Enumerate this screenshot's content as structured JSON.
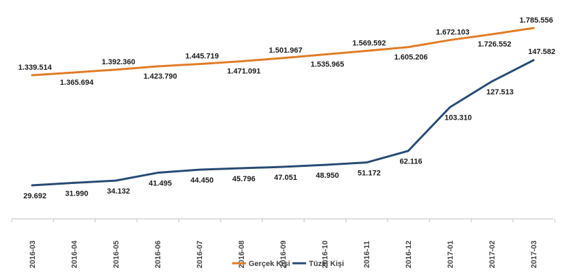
{
  "chart_data": {
    "type": "line",
    "categories": [
      "2016-03",
      "2016-04",
      "2016-05",
      "2016-06",
      "2016-07",
      "2016-08",
      "2016-09",
      "2016-10",
      "2016-11",
      "2016-12",
      "2017-01",
      "2017-02",
      "2017-03"
    ],
    "series": [
      {
        "name": "Gerçek Kişi",
        "color": "#e07b24",
        "values": [
          1339514,
          1365694,
          1392360,
          1423790,
          1445719,
          1471091,
          1501967,
          1535965,
          1569592,
          1605206,
          1672103,
          1726552,
          1785556
        ],
        "labels": [
          "1.339.514",
          "1.365.694",
          "1.392.360",
          "1.423.790",
          "1.445.719",
          "1.471.091",
          "1.501.967",
          "1.535.965",
          "1.569.592",
          "1.605.206",
          "1.672.103",
          "1.726.552",
          "1.785.556"
        ]
      },
      {
        "name": "Tüzel Kişi",
        "color": "#264a73",
        "values": [
          29692,
          31990,
          34132,
          41495,
          44450,
          45796,
          47051,
          48950,
          51172,
          62116,
          103310,
          127513,
          147582
        ],
        "labels": [
          "29.692",
          "31.990",
          "34.132",
          "41.495",
          "44.450",
          "45.796",
          "47.051",
          "48.950",
          "51.172",
          "62.116",
          "103.310",
          "127.513",
          "147.582"
        ]
      }
    ],
    "legend_position": "bottom",
    "grid": false
  }
}
